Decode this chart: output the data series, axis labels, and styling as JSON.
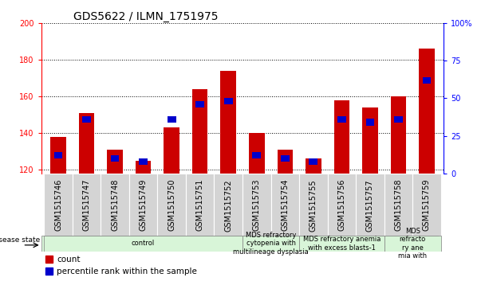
{
  "title": "GDS5622 / ILMN_1751975",
  "samples": [
    "GSM1515746",
    "GSM1515747",
    "GSM1515748",
    "GSM1515749",
    "GSM1515750",
    "GSM1515751",
    "GSM1515752",
    "GSM1515753",
    "GSM1515754",
    "GSM1515755",
    "GSM1515756",
    "GSM1515757",
    "GSM1515758",
    "GSM1515759"
  ],
  "counts": [
    138,
    151,
    131,
    125,
    143,
    164,
    174,
    140,
    131,
    126,
    158,
    154,
    160,
    186
  ],
  "percentiles": [
    12,
    36,
    10,
    8,
    36,
    46,
    48,
    12,
    10,
    8,
    36,
    34,
    36,
    62
  ],
  "ylim_left": [
    118,
    200
  ],
  "ylim_right": [
    0,
    100
  ],
  "yticks_left": [
    120,
    140,
    160,
    180,
    200
  ],
  "yticks_right": [
    0,
    25,
    50,
    75,
    100
  ],
  "disease_states": [
    {
      "label": "control",
      "start": 0,
      "end": 7
    },
    {
      "label": "MDS refractory\ncytopenia with\nmultilineage dysplasia",
      "start": 7,
      "end": 9
    },
    {
      "label": "MDS refractory anemia\nwith excess blasts-1",
      "start": 9,
      "end": 12
    },
    {
      "label": "MDS\nrefracto\nry ane\nmia with",
      "start": 12,
      "end": 14
    }
  ],
  "bar_color": "#cc0000",
  "percentile_color": "#0000cc",
  "bar_width": 0.55,
  "background_color": "#ffffff",
  "title_fontsize": 10,
  "tick_fontsize": 7,
  "label_fontsize": 7.5,
  "cell_bg": "#d4d4d4",
  "ds_bg": "#d8f5d8"
}
